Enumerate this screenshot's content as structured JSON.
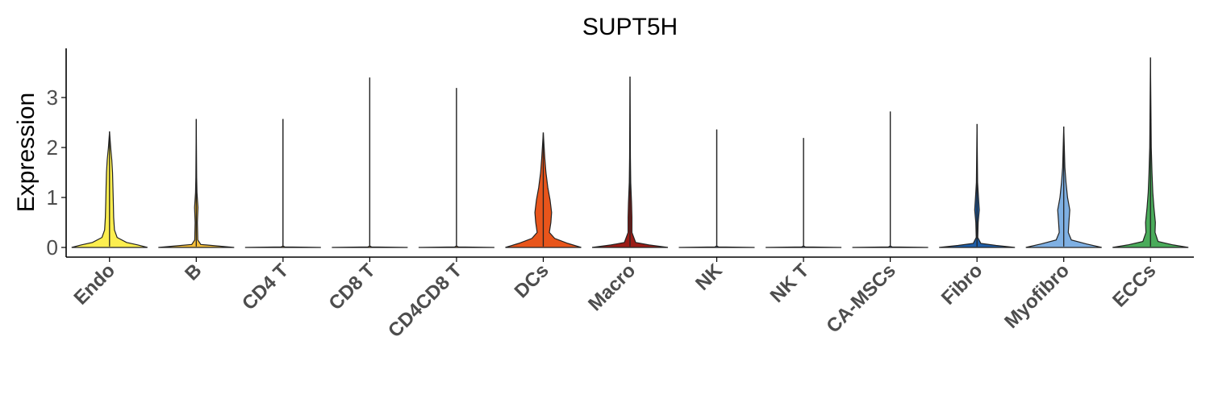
{
  "chart_data": {
    "type": "violin",
    "title": "SUPT5H",
    "xlabel": "",
    "ylabel": "Expression",
    "ylim": [
      -0.2,
      3.95
    ],
    "yticks": [
      0,
      1,
      2,
      3
    ],
    "grid": false,
    "legend": "none",
    "categories": [
      "Endo",
      "B",
      "CD4 T",
      "CD8 T",
      "CD4CD8 T",
      "DCs",
      "Macro",
      "NK",
      "NK T",
      "CA-MSCs",
      "Fibro",
      "Myofibro",
      "ECCs"
    ],
    "series": [
      {
        "category": "Endo",
        "color": "#fcee4f",
        "max": 2.32,
        "density": [
          [
            0,
            1
          ],
          [
            0.05,
            0.75
          ],
          [
            0.1,
            0.45
          ],
          [
            0.2,
            0.2
          ],
          [
            0.35,
            0.13
          ],
          [
            0.6,
            0.11
          ],
          [
            0.9,
            0.1
          ],
          [
            1.2,
            0.09
          ],
          [
            1.5,
            0.08
          ],
          [
            1.75,
            0.06
          ],
          [
            2.0,
            0.03
          ],
          [
            2.32,
            0
          ]
        ]
      },
      {
        "category": "B",
        "color": "#f5bf3a",
        "max": 2.57,
        "density": [
          [
            0,
            1
          ],
          [
            0.03,
            0.55
          ],
          [
            0.06,
            0.12
          ],
          [
            0.15,
            0.04
          ],
          [
            0.5,
            0.03
          ],
          [
            0.8,
            0.045
          ],
          [
            1.1,
            0.02
          ],
          [
            1.4,
            0.01
          ],
          [
            2.57,
            0
          ]
        ]
      },
      {
        "category": "CD4 T",
        "color": "#c79a2c",
        "max": 2.57,
        "density": [
          [
            0,
            1
          ],
          [
            0.01,
            0.05
          ],
          [
            0.03,
            0
          ],
          [
            2.57,
            0
          ]
        ]
      },
      {
        "category": "CD8 T",
        "color": "#e8a33b",
        "max": 3.4,
        "density": [
          [
            0,
            1
          ],
          [
            0.01,
            0.05
          ],
          [
            0.03,
            0
          ],
          [
            3.4,
            0
          ]
        ]
      },
      {
        "category": "CD4CD8 T",
        "color": "#f0952a",
        "max": 3.19,
        "density": [
          [
            0,
            1
          ],
          [
            0.01,
            0.05
          ],
          [
            0.03,
            0
          ],
          [
            3.19,
            0
          ]
        ]
      },
      {
        "category": "DCs",
        "color": "#e8551b",
        "max": 2.3,
        "density": [
          [
            0,
            1
          ],
          [
            0.08,
            0.65
          ],
          [
            0.18,
            0.3
          ],
          [
            0.3,
            0.16
          ],
          [
            0.5,
            0.2
          ],
          [
            0.7,
            0.22
          ],
          [
            0.95,
            0.18
          ],
          [
            1.2,
            0.12
          ],
          [
            1.5,
            0.07
          ],
          [
            1.8,
            0.04
          ],
          [
            2.3,
            0
          ]
        ]
      },
      {
        "category": "Macro",
        "color": "#9b1c16",
        "max": 3.42,
        "density": [
          [
            0,
            1
          ],
          [
            0.05,
            0.5
          ],
          [
            0.1,
            0.15
          ],
          [
            0.3,
            0.05
          ],
          [
            0.6,
            0.05
          ],
          [
            0.9,
            0.04
          ],
          [
            1.3,
            0.02
          ],
          [
            1.8,
            0.01
          ],
          [
            3.42,
            0
          ]
        ]
      },
      {
        "category": "NK",
        "color": "#3d6fb0",
        "max": 2.36,
        "density": [
          [
            0,
            1
          ],
          [
            0.01,
            0.05
          ],
          [
            0.03,
            0
          ],
          [
            2.36,
            0
          ]
        ]
      },
      {
        "category": "NK T",
        "color": "#6a8fc4",
        "max": 2.19,
        "density": [
          [
            0,
            1
          ],
          [
            0.01,
            0.05
          ],
          [
            0.03,
            0
          ],
          [
            2.19,
            0
          ]
        ]
      },
      {
        "category": "CA-MSCs",
        "color": "#5a8fcf",
        "max": 2.72,
        "density": [
          [
            0,
            1
          ],
          [
            0.01,
            0.05
          ],
          [
            0.03,
            0
          ],
          [
            2.72,
            0
          ]
        ]
      },
      {
        "category": "Fibro",
        "color": "#1f5ea8",
        "max": 2.47,
        "density": [
          [
            0,
            1
          ],
          [
            0.04,
            0.5
          ],
          [
            0.08,
            0.1
          ],
          [
            0.2,
            0.02
          ],
          [
            0.5,
            0.03
          ],
          [
            0.75,
            0.06
          ],
          [
            1.0,
            0.04
          ],
          [
            1.3,
            0.015
          ],
          [
            2.47,
            0
          ]
        ]
      },
      {
        "category": "Myofibro",
        "color": "#7fb0e3",
        "max": 2.42,
        "density": [
          [
            0,
            1
          ],
          [
            0.07,
            0.6
          ],
          [
            0.15,
            0.2
          ],
          [
            0.3,
            0.12
          ],
          [
            0.55,
            0.14
          ],
          [
            0.75,
            0.16
          ],
          [
            1.0,
            0.1
          ],
          [
            1.3,
            0.06
          ],
          [
            1.6,
            0.03
          ],
          [
            2.42,
            0
          ]
        ]
      },
      {
        "category": "ECCs",
        "color": "#4aab5a",
        "max": 3.8,
        "density": [
          [
            0,
            1
          ],
          [
            0.05,
            0.6
          ],
          [
            0.12,
            0.2
          ],
          [
            0.3,
            0.12
          ],
          [
            0.5,
            0.13
          ],
          [
            0.8,
            0.09
          ],
          [
            1.1,
            0.06
          ],
          [
            1.5,
            0.04
          ],
          [
            2.0,
            0.02
          ],
          [
            3.8,
            0
          ]
        ]
      }
    ]
  }
}
